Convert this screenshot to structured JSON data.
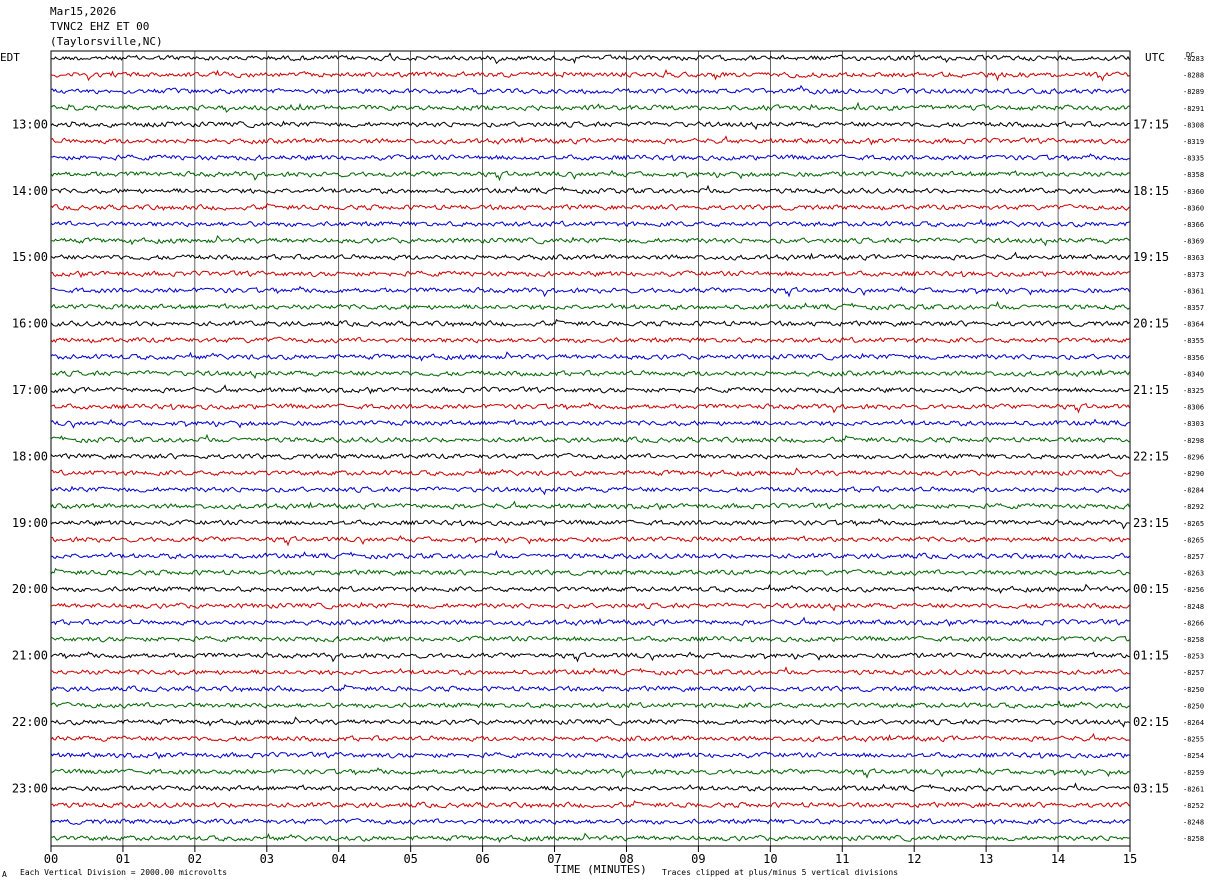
{
  "header": {
    "date": "Mar15,2026",
    "station": "TVNC2 EHZ ET 00",
    "location": "(Taylorsville,NC)"
  },
  "left_tz": "EDT",
  "right_tz": "UTC",
  "dc_label": "DC",
  "footer": {
    "scale": "Each Vertical Division = 2000.00 microvolts",
    "clip": "Traces clipped at plus/minus 5 vertical divisions",
    "mark": "A"
  },
  "chart_data": {
    "type": "line",
    "xlabel": "TIME (MINUTES)",
    "x_ticks": [
      "00",
      "01",
      "02",
      "03",
      "04",
      "05",
      "06",
      "07",
      "08",
      "09",
      "10",
      "11",
      "12",
      "13",
      "14",
      "15"
    ],
    "xlim": [
      0,
      15
    ],
    "left_time_labels": [
      "13:00",
      "14:00",
      "15:00",
      "16:00",
      "17:00",
      "18:00",
      "19:00",
      "20:00",
      "21:00",
      "22:00",
      "23:00"
    ],
    "right_time_labels": [
      "17:15",
      "18:15",
      "19:15",
      "20:15",
      "21:15",
      "22:15",
      "23:15",
      "00:15",
      "01:15",
      "02:15",
      "03:15"
    ],
    "trace_colors": [
      "#000000",
      "#cc0000",
      "#0000cc",
      "#006600"
    ],
    "dc_offsets": [
      "-8283",
      "-8288",
      "-8289",
      "-8291",
      "-8308",
      "-8319",
      "-8335",
      "-8358",
      "-8360",
      "-8360",
      "-8366",
      "-8369",
      "-8363",
      "-8373",
      "-8361",
      "-8357",
      "-8364",
      "-8355",
      "-8356",
      "-8340",
      "-8325",
      "-8306",
      "-8303",
      "-8298",
      "-8296",
      "-8290",
      "-8284",
      "-8292",
      "-8265",
      "-8265",
      "-8257",
      "-8263",
      "-8256",
      "-8248",
      "-8266",
      "-8258",
      "-8253",
      "-8257",
      "-8250",
      "-8250",
      "-8264",
      "-8255",
      "-8254",
      "-8259",
      "-8261",
      "-8252",
      "-8248",
      "-8258"
    ]
  }
}
